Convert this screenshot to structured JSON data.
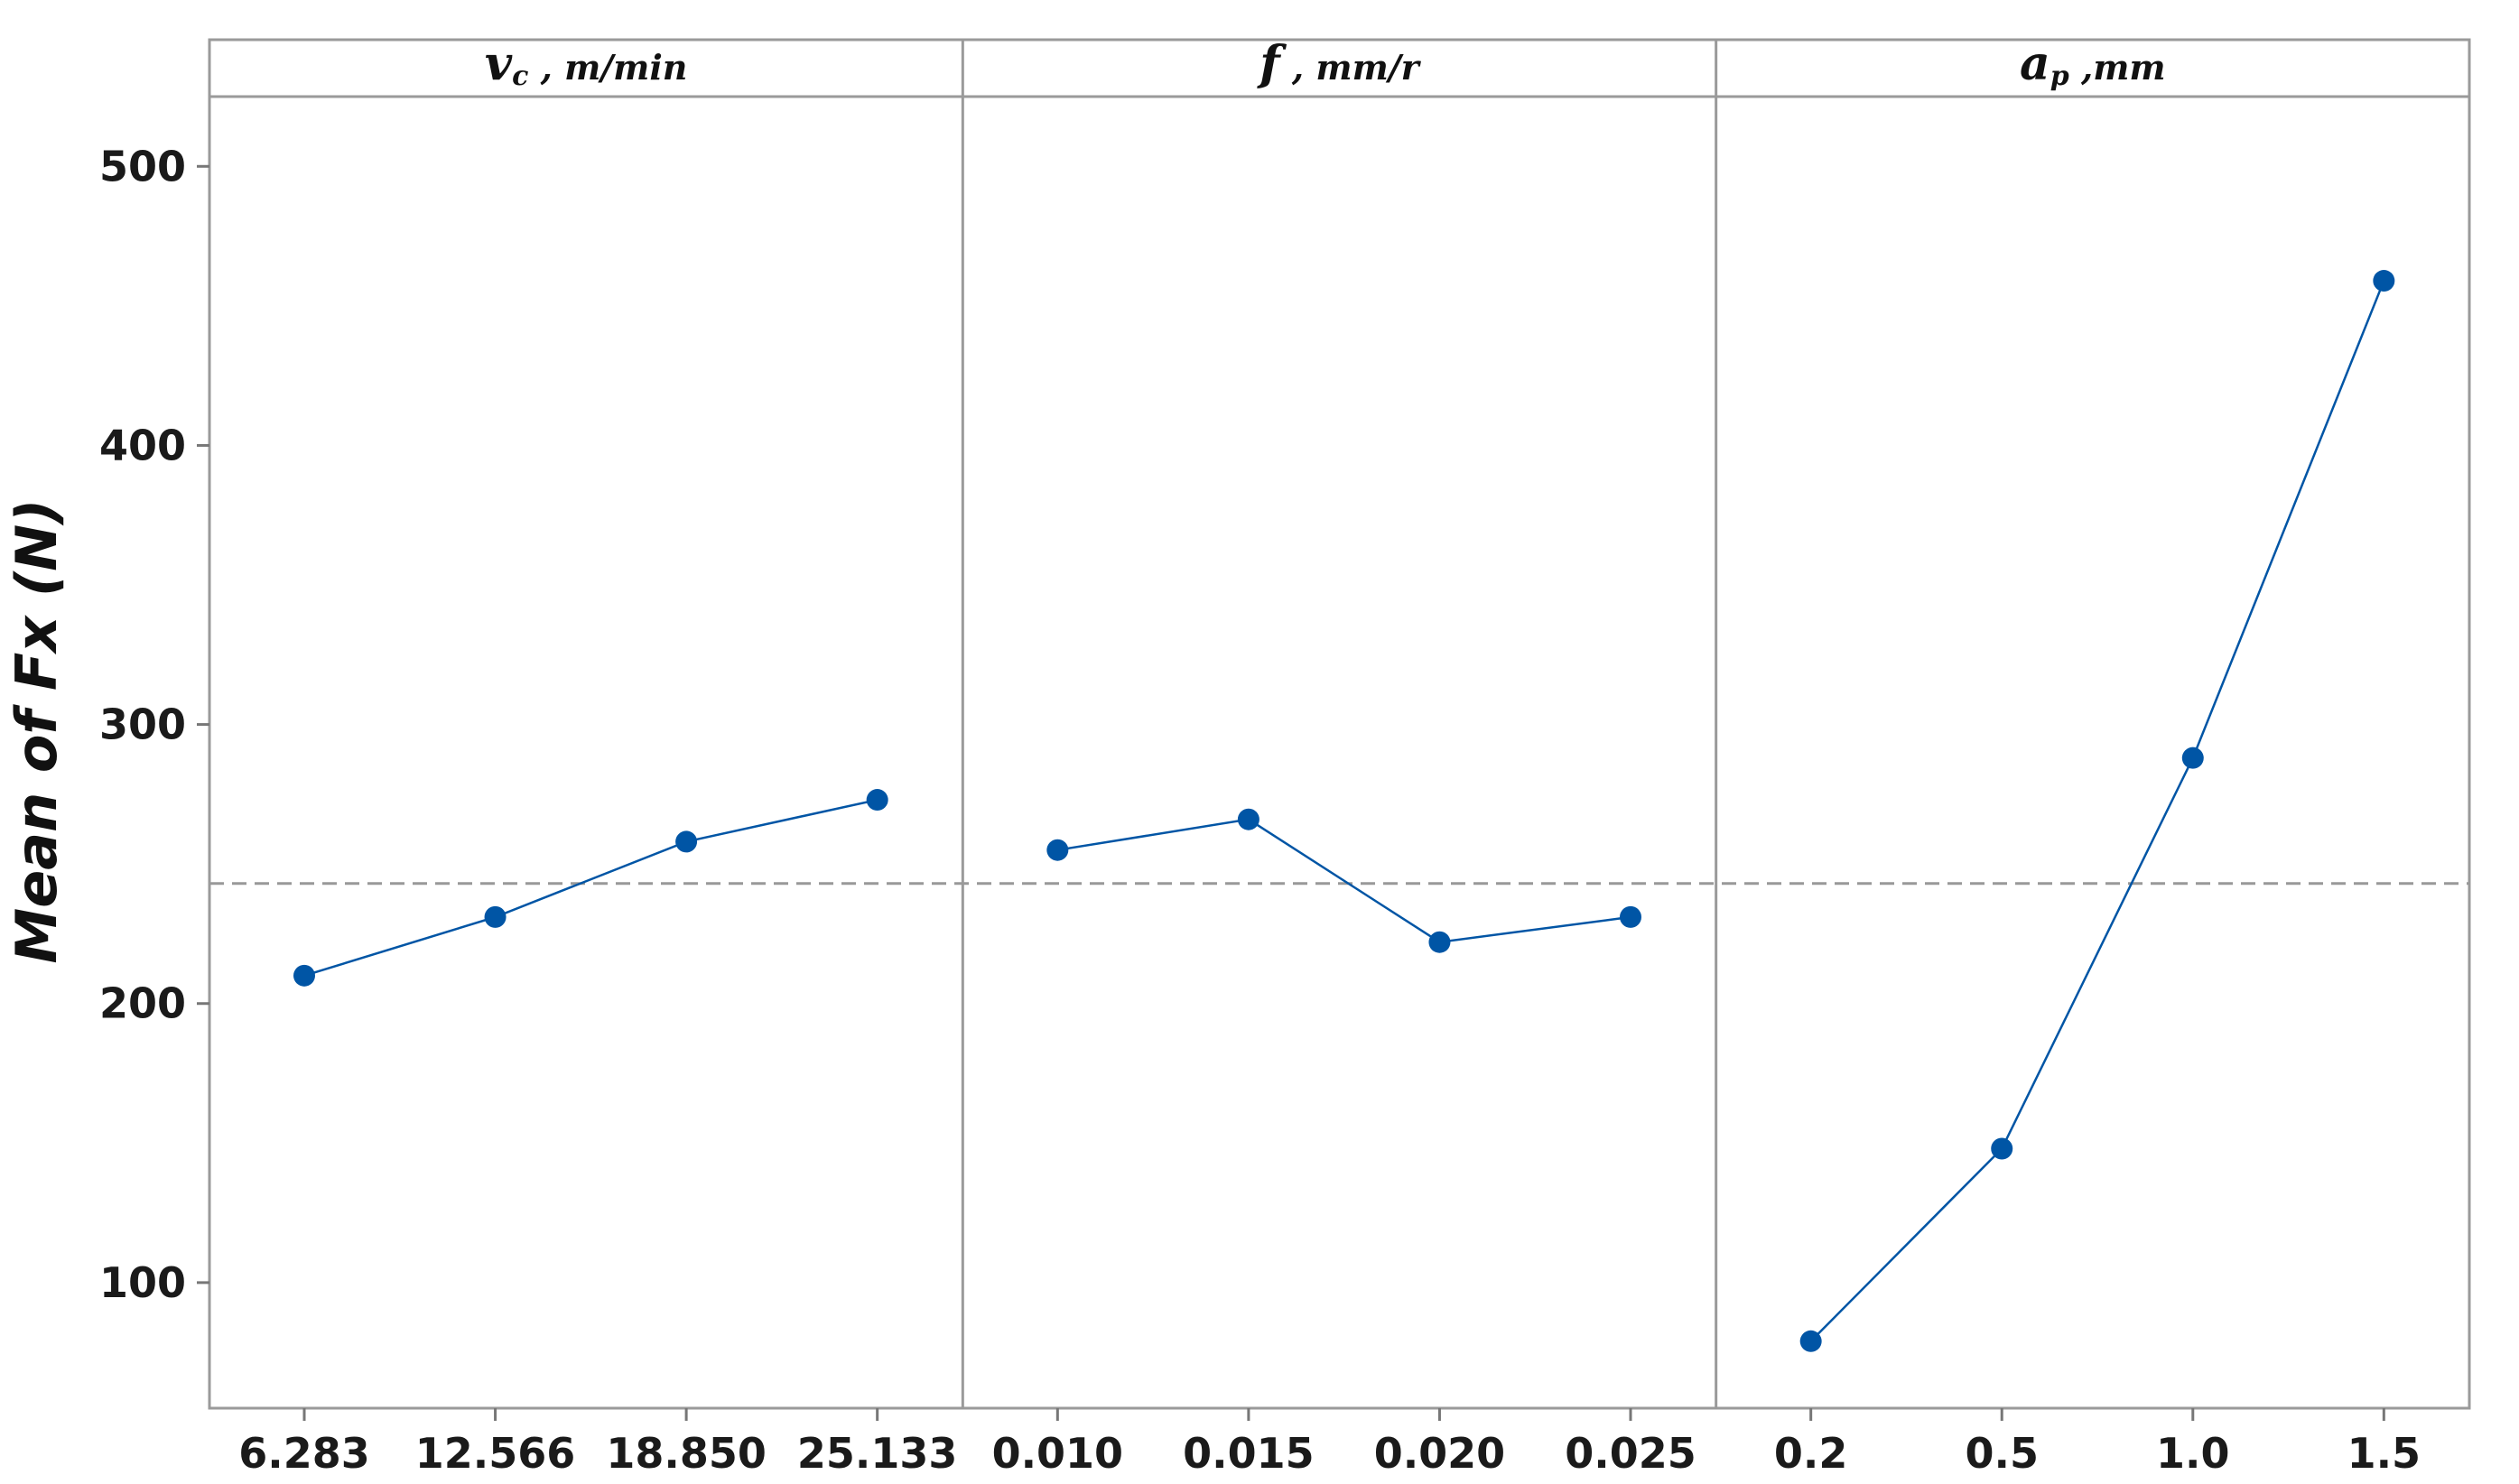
{
  "chart_data": {
    "type": "line",
    "ylabel": "Mean of Fx (N)",
    "ylim": [
      55,
      525
    ],
    "yticks": [
      100,
      200,
      300,
      400,
      500
    ],
    "mean_reference": 243,
    "grid": false,
    "series_color": "#0055a5",
    "reference_color": "#999999",
    "panels": [
      {
        "title_main": "v",
        "title_sub": "c",
        "title_rest": " , m/min",
        "categories": [
          "6.283",
          "12.566",
          "18.850",
          "25.133"
        ],
        "values": [
          210,
          231,
          258,
          273
        ]
      },
      {
        "title_main": "f",
        "title_sub": "",
        "title_rest": " , mm/r",
        "categories": [
          "0.010",
          "0.015",
          "0.020",
          "0.025"
        ],
        "values": [
          255,
          266,
          222,
          231
        ]
      },
      {
        "title_main": "a",
        "title_sub": "p",
        "title_rest": " ,mm",
        "categories": [
          "0.2",
          "0.5",
          "1.0",
          "1.5"
        ],
        "values": [
          79,
          148,
          288,
          459
        ]
      }
    ]
  }
}
